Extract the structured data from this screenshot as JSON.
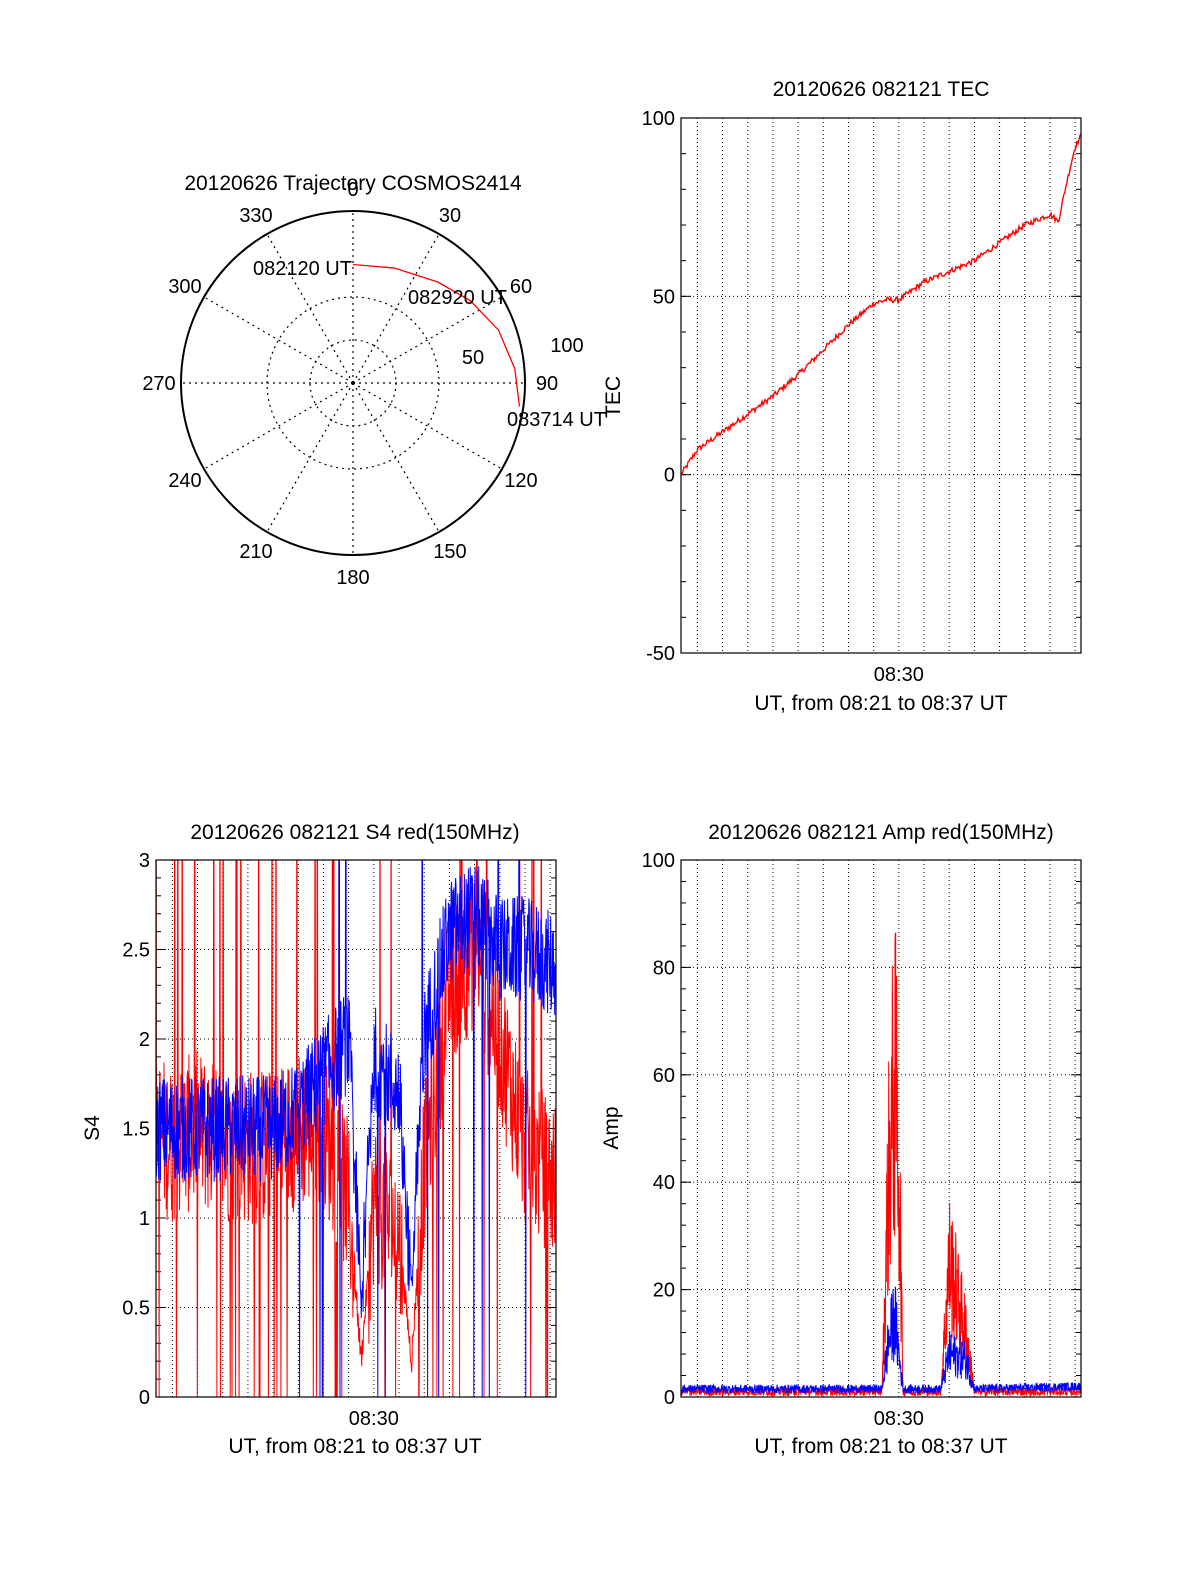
{
  "colors": {
    "red": "#ff0000",
    "blue": "#0000ff",
    "axis": "#000000"
  },
  "chart_data": [
    {
      "id": "polar",
      "type": "scatter",
      "subtype": "polar-trajectory",
      "title": "20120626 Trajectory COSMOS2414",
      "angle_labels": [
        "0",
        "30",
        "60",
        "90",
        "120",
        "150",
        "180",
        "210",
        "240",
        "270",
        "300",
        "330"
      ],
      "radial_labels": [
        "50",
        "100"
      ],
      "track_points": [
        {
          "az": 0,
          "el": 28
        },
        {
          "az": 20,
          "el": 26
        },
        {
          "az": 40,
          "el": 21
        },
        {
          "az": 55,
          "el": 15
        },
        {
          "az": 70,
          "el": 9
        },
        {
          "az": 85,
          "el": 5
        },
        {
          "az": 98,
          "el": 2
        }
      ],
      "time_labels": [
        "082120 UT",
        "082920 UT",
        "083714 UT"
      ],
      "series": [
        {
          "color": "#ff0000"
        }
      ]
    },
    {
      "id": "tec",
      "type": "line",
      "title": "20120626 082121 TEC",
      "ylabel": "TEC",
      "xlabel": "UT, from 08:21 to 08:37 UT",
      "ylim": [
        -50,
        100
      ],
      "xlim": [
        "08:21:21",
        "08:37:14"
      ],
      "x_ticks": [
        "08:30"
      ],
      "y_ticks": [
        "-50",
        "0",
        "50",
        "100"
      ],
      "grid": true,
      "series": [
        {
          "color": "#ff0000",
          "x": [
            "08:21:21",
            "08:22:00",
            "08:23:00",
            "08:24:00",
            "08:25:00",
            "08:26:00",
            "08:27:00",
            "08:28:00",
            "08:29:00",
            "08:29:30",
            "08:30:00",
            "08:31:00",
            "08:32:00",
            "08:33:00",
            "08:34:00",
            "08:35:00",
            "08:36:00",
            "08:36:20",
            "08:36:40",
            "08:37:00",
            "08:37:14"
          ],
          "values": [
            0,
            7,
            12,
            17,
            22,
            28,
            35,
            42,
            48,
            49,
            49,
            54,
            57,
            60,
            65,
            70,
            73,
            71,
            82,
            92,
            95
          ]
        }
      ]
    },
    {
      "id": "s4",
      "type": "line",
      "title": "20120626 082121 S4 red(150MHz)",
      "ylabel": "S4",
      "xlabel": "UT, from 08:21 to 08:37 UT",
      "ylim": [
        0,
        3
      ],
      "xlim": [
        "08:21:21",
        "08:37:14"
      ],
      "x_ticks": [
        "08:30"
      ],
      "y_ticks": [
        "0",
        "0.5",
        "1",
        "1.5",
        "2",
        "2.5",
        "3"
      ],
      "grid": true,
      "series": [
        {
          "color": "#ff0000",
          "x": [
            "08:21:21",
            "08:22:00",
            "08:23:00",
            "08:24:00",
            "08:25:00",
            "08:26:00",
            "08:27:00",
            "08:28:00",
            "08:29:00",
            "08:29:30",
            "08:30:00",
            "08:31:00",
            "08:31:30",
            "08:32:00",
            "08:33:00",
            "08:34:00",
            "08:35:00",
            "08:36:00",
            "08:37:14"
          ],
          "values": [
            1.5,
            1.4,
            1.5,
            1.4,
            1.4,
            1.4,
            1.5,
            1.5,
            1.1,
            0.2,
            1.1,
            0.9,
            0.2,
            1.3,
            2.3,
            2.5,
            2.0,
            1.4,
            1.2
          ]
        },
        {
          "color": "#0000ff",
          "x": [
            "08:21:21",
            "08:22:00",
            "08:23:00",
            "08:24:00",
            "08:25:00",
            "08:26:00",
            "08:27:00",
            "08:28:00",
            "08:29:00",
            "08:29:30",
            "08:30:00",
            "08:31:00",
            "08:31:30",
            "08:32:00",
            "08:33:00",
            "08:34:00",
            "08:35:00",
            "08:36:00",
            "08:37:14"
          ],
          "values": [
            1.5,
            1.5,
            1.5,
            1.5,
            1.5,
            1.5,
            1.6,
            1.8,
            2.0,
            0.5,
            1.9,
            1.7,
            0.6,
            2.0,
            2.6,
            2.7,
            2.5,
            2.5,
            2.4
          ]
        }
      ]
    },
    {
      "id": "amp",
      "type": "line",
      "title": "20120626 082121 Amp red(150MHz)",
      "ylabel": "Amp",
      "xlabel": "UT, from 08:21 to 08:37 UT",
      "ylim": [
        0,
        100
      ],
      "xlim": [
        "08:21:21",
        "08:37:14"
      ],
      "x_ticks": [
        "08:30"
      ],
      "y_ticks": [
        "0",
        "20",
        "40",
        "60",
        "80",
        "100"
      ],
      "grid": true,
      "series": [
        {
          "color": "#ff0000",
          "x": [
            "08:21:21",
            "08:29:20",
            "08:29:35",
            "08:29:50",
            "08:30:00",
            "08:30:10",
            "08:31:40",
            "08:32:00",
            "08:32:40",
            "08:33:00",
            "08:37:14"
          ],
          "values": [
            1,
            1,
            40,
            60,
            45,
            1,
            1,
            25,
            12,
            1,
            1
          ]
        },
        {
          "color": "#0000ff",
          "x": [
            "08:21:21",
            "08:29:20",
            "08:29:35",
            "08:29:50",
            "08:30:00",
            "08:30:10",
            "08:31:40",
            "08:32:00",
            "08:32:40",
            "08:33:00",
            "08:37:14"
          ],
          "values": [
            1.5,
            1.5,
            10,
            15,
            8,
            1.5,
            1.5,
            8,
            7,
            1.5,
            2
          ]
        }
      ]
    }
  ]
}
